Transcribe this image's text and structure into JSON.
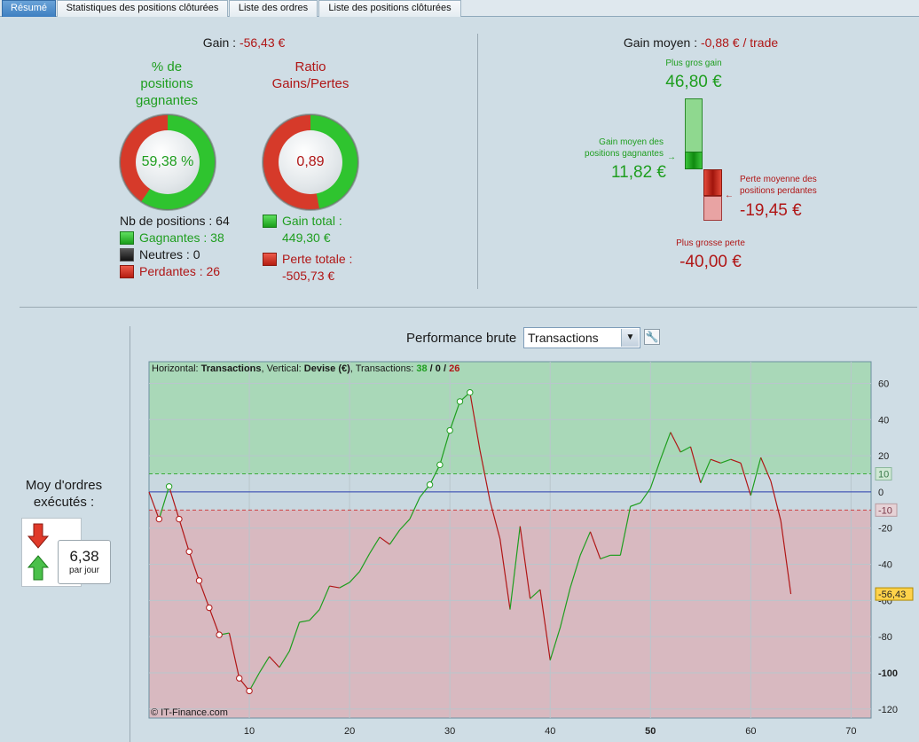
{
  "tabs": [
    {
      "label": "Résumé",
      "active": true
    },
    {
      "label": "Statistiques des positions clôturées",
      "active": false
    },
    {
      "label": "Liste des ordres",
      "active": false
    },
    {
      "label": "Liste des positions clôturées",
      "active": false
    }
  ],
  "summary": {
    "gain_label": "Gain : ",
    "gain_value": "-56,43 €",
    "win_pct_title": [
      "% de",
      "positions",
      "gagnantes"
    ],
    "win_pct_value": "59,38 %",
    "win_fraction": 0.5938,
    "ratio_title": [
      "Ratio",
      "Gains/Pertes"
    ],
    "ratio_value": "0,89",
    "ratio_gain_share": 0.47,
    "nb_positions": "Nb de positions : 64",
    "gagnantes": "Gagnantes : 38",
    "neutres": "Neutres : 0",
    "perdantes": "Perdantes : 26",
    "gain_total_label": "Gain total :",
    "gain_total_value": "449,30 €",
    "perte_totale_label": "Perte totale :",
    "perte_totale_value": "-505,73 €"
  },
  "average": {
    "label": "Gain moyen : ",
    "value": "-0,88 € / trade",
    "plus_gros_gain_label": "Plus gros gain",
    "plus_gros_gain_value": "46,80 €",
    "gain_moyen_label": [
      "Gain moyen des",
      "positions gagnantes"
    ],
    "gain_moyen_value": "11,82 €",
    "perte_moyenne_label": [
      "Perte moyenne des",
      "positions perdantes"
    ],
    "perte_moyenne_value": "-19,45 €",
    "plus_grosse_perte_label": "Plus grosse perte",
    "plus_grosse_perte_value": "-40,00 €",
    "scale": {
      "max_gain": 46.8,
      "avg_gain": 11.82,
      "avg_loss": -19.45,
      "max_loss": -40.0
    }
  },
  "orders": {
    "title": [
      "Moy d'ordres",
      "exécutés :"
    ],
    "value": "6,38",
    "unit": "par jour"
  },
  "performance": {
    "title": "Performance brute",
    "select_value": "Transactions",
    "header": {
      "p1": "Horizontal: ",
      "h": "Transactions",
      "p2": ", Vertical: ",
      "v": "Devise (€)",
      "p3": ", Transactions: ",
      "wins": "38",
      "sep1": " / ",
      "neutral": "0",
      "sep2": " / ",
      "losses": "26"
    },
    "copyright": "© IT-Finance.com",
    "colors": {
      "gain": "#1f9e1f",
      "loss": "#b01616",
      "zero": "#2a3fb0",
      "zone_gain": "#a9d8b8",
      "zone_loss": "#d8b9c0"
    }
  },
  "chart_data": {
    "type": "line",
    "xlim": [
      0,
      72
    ],
    "ylim": [
      -125,
      72
    ],
    "x_ticks": [
      10,
      20,
      30,
      40,
      50,
      60,
      70
    ],
    "y_ticks": [
      60,
      40,
      20,
      0,
      -20,
      -40,
      -60,
      -80,
      -100,
      -120
    ],
    "y_tick_labels": [
      "60",
      "40",
      "20",
      "0",
      "-20",
      "-40",
      "-60",
      "-80",
      "-100",
      "-120"
    ],
    "bold_x_tick": 50,
    "bold_y_tick": -100,
    "markers": {
      "upper": "10",
      "lower": "-10",
      "last": "-56,43"
    },
    "bands": {
      "upper": 10,
      "lower": -10
    },
    "x": [
      0,
      1,
      2,
      3,
      4,
      5,
      6,
      7,
      8,
      9,
      10,
      11,
      12,
      13,
      14,
      15,
      16,
      17,
      18,
      19,
      20,
      21,
      22,
      23,
      24,
      25,
      26,
      27,
      28,
      29,
      30,
      31,
      32,
      33,
      34,
      35,
      36,
      37,
      38,
      39,
      40,
      41,
      42,
      43,
      44,
      45,
      46,
      47,
      48,
      49,
      50,
      51,
      52,
      53,
      54,
      55,
      56,
      57,
      58,
      59,
      60,
      61,
      62,
      63,
      64
    ],
    "y": [
      0,
      -15,
      3,
      -15,
      -33,
      -49,
      -64,
      -79,
      -78,
      -103,
      -110,
      -100,
      -91,
      -97,
      -88,
      -72,
      -71,
      -65,
      -52,
      -53,
      -50,
      -44,
      -34,
      -25,
      -29,
      -21,
      -15,
      -3,
      4,
      15,
      34,
      50,
      55,
      23,
      -5,
      -26,
      -65,
      -19,
      -59,
      -54,
      -93,
      -75,
      -53,
      -35,
      -22,
      -37,
      -35,
      -35,
      -8,
      -6,
      2,
      18,
      33,
      22,
      25,
      5,
      18,
      16,
      18,
      16,
      -2,
      19,
      6,
      -16,
      -56.43
    ],
    "marker_points": [
      1,
      2,
      3,
      4,
      5,
      6,
      7,
      9,
      10,
      28,
      29,
      30,
      31,
      32
    ]
  }
}
